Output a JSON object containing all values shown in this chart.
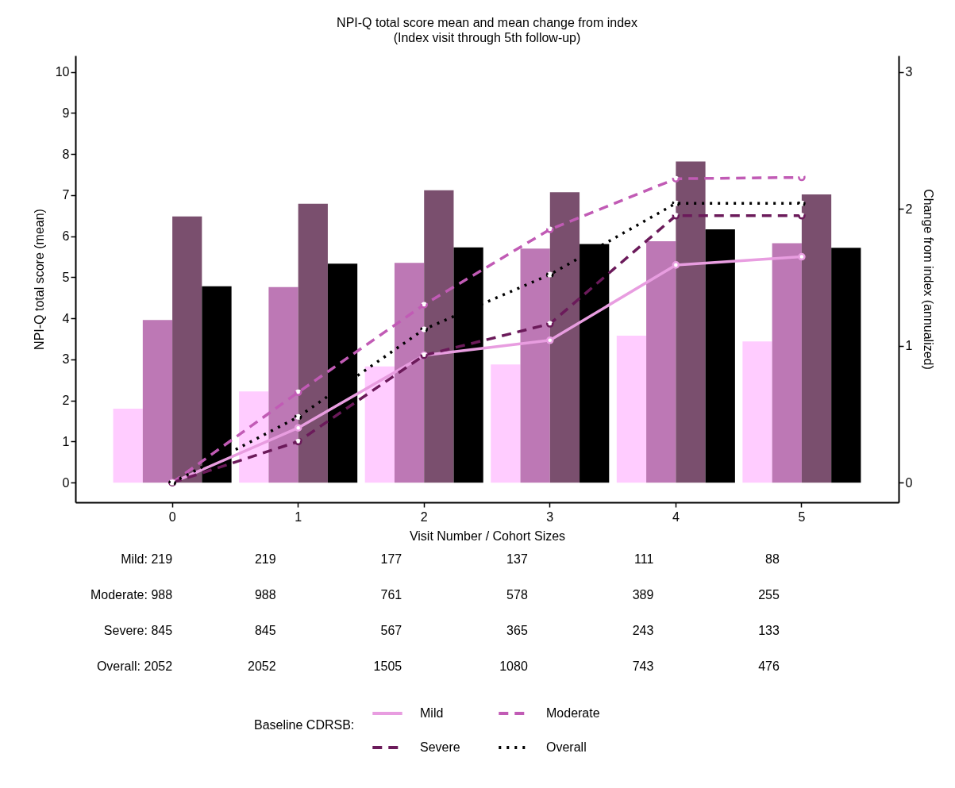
{
  "chart_data": {
    "type": "bar",
    "title": "NPI-Q total score mean and mean change from index",
    "subtitle": "(Index visit through 5th follow-up)",
    "xlabel": "Visit Number / Cohort Sizes",
    "ylabel": "NPI-Q total score (mean)",
    "y2label": "Change from index (annualized)",
    "legend_title": "Baseline CDRSB:",
    "legend": "bottom",
    "marker": "circle",
    "categories": [
      "0",
      "1",
      "2",
      "3",
      "4",
      "5"
    ],
    "ylim": [
      -0.48,
      10.4
    ],
    "yticks": [
      0,
      1,
      2,
      3,
      4,
      5,
      6,
      7,
      8,
      9,
      10
    ],
    "y2lim": [
      -0.144,
      3.12
    ],
    "y2ticks": [
      0,
      1,
      2,
      3
    ],
    "series": [
      {
        "type": "bar",
        "color": "#ffccff",
        "values": [
          1.8,
          2.22,
          2.83,
          2.88,
          3.58,
          3.44
        ]
      },
      {
        "type": "bar",
        "color": "#bd78b5",
        "values": [
          3.96,
          4.76,
          5.35,
          5.7,
          5.88,
          5.83
        ]
      },
      {
        "type": "bar",
        "color": "#7a4f6e",
        "values": [
          6.48,
          6.79,
          7.12,
          7.07,
          7.82,
          7.02
        ]
      },
      {
        "type": "bar",
        "color": "#000000",
        "values": [
          4.78,
          5.33,
          5.73,
          5.81,
          6.17,
          5.72
        ]
      },
      {
        "type": "line",
        "axis": "y2",
        "name": "Mild",
        "color": "#e89de0",
        "line_style": "solid",
        "values": [
          0,
          0.4,
          0.93,
          1.04,
          1.59,
          1.65
        ]
      },
      {
        "type": "line",
        "axis": "y2",
        "name": "Moderate",
        "color": "#c15bb5",
        "line_style": "dashed",
        "values": [
          0,
          0.66,
          1.3,
          1.85,
          2.22,
          2.23
        ]
      },
      {
        "type": "line",
        "axis": "y2",
        "name": "Severe",
        "color": "#6b1a5a",
        "line_style": "dashed",
        "values": [
          0,
          0.3,
          0.93,
          1.16,
          1.95,
          1.95
        ]
      },
      {
        "type": "line",
        "axis": "y2",
        "name": "Overall",
        "color": "#000000",
        "line_style": "dotted",
        "values": [
          0,
          0.48,
          1.12,
          1.52,
          2.04,
          2.04
        ]
      }
    ],
    "annotations": [
      "Mild: 219",
      "219",
      "177",
      "137",
      "111",
      "88",
      "Moderate: 988",
      "988",
      "761",
      "578",
      "389",
      "255",
      "Severe: 845",
      "845",
      "567",
      "365",
      "243",
      "133",
      "Overall: 2052",
      "2052",
      "1505",
      "1080",
      "743",
      "476"
    ]
  }
}
